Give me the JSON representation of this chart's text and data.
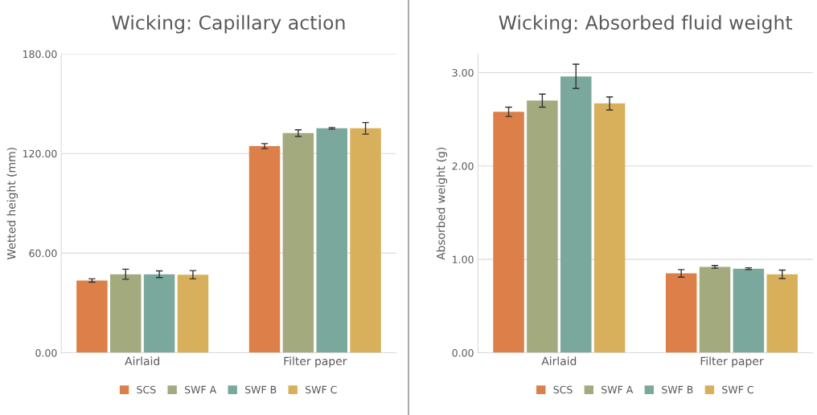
{
  "chart_data": [
    {
      "type": "bar",
      "title": "Wicking: Capillary action",
      "ylabel": "Wetted height (mm)",
      "categories": [
        "Airlaid",
        "Filter paper"
      ],
      "series": [
        {
          "name": "SCS",
          "color": "#dd7f48",
          "values": [
            43.5,
            124.5
          ],
          "errors": [
            1,
            1.5
          ]
        },
        {
          "name": "SWF A",
          "color": "#a3aa7e",
          "values": [
            47.3,
            132.3
          ],
          "errors": [
            3,
            2
          ]
        },
        {
          "name": "SWF B",
          "color": "#7ba89c",
          "values": [
            47.3,
            135.2
          ],
          "errors": [
            2,
            0.5
          ]
        },
        {
          "name": "SWF C",
          "color": "#d8b05b",
          "values": [
            47,
            135.2
          ],
          "errors": [
            2.5,
            3.5
          ]
        }
      ],
      "ylim": [
        0,
        180
      ],
      "yticks": [
        {
          "value": 0,
          "label": "0.00"
        },
        {
          "value": 60,
          "label": "60.00"
        },
        {
          "value": 120,
          "label": "120.00"
        },
        {
          "value": 180,
          "label": "180.00"
        }
      ],
      "grid": "y",
      "legend": "bottom"
    },
    {
      "type": "bar",
      "title": "Wicking: Absorbed fluid weight",
      "ylabel": "Absorbed weight (g)",
      "categories": [
        "Airlaid",
        "Filter paper"
      ],
      "series": [
        {
          "name": "SCS",
          "color": "#dd7f48",
          "values": [
            2.58,
            0.85
          ],
          "errors": [
            0.05,
            0.04
          ]
        },
        {
          "name": "SWF A",
          "color": "#a3aa7e",
          "values": [
            2.7,
            0.92
          ],
          "errors": [
            0.07,
            0.015
          ]
        },
        {
          "name": "SWF B",
          "color": "#7ba89c",
          "values": [
            2.96,
            0.9
          ],
          "errors": [
            0.13,
            0.01
          ]
        },
        {
          "name": "SWF C",
          "color": "#d8b05b",
          "values": [
            2.67,
            0.84
          ],
          "errors": [
            0.07,
            0.045
          ]
        }
      ],
      "ylim": [
        0,
        3.2
      ],
      "yticks": [
        {
          "value": 0,
          "label": "0.00"
        },
        {
          "value": 1,
          "label": "1.00"
        },
        {
          "value": 2,
          "label": "2.00"
        },
        {
          "value": 3,
          "label": "3.00"
        }
      ],
      "grid": "y",
      "legend": "bottom"
    }
  ]
}
